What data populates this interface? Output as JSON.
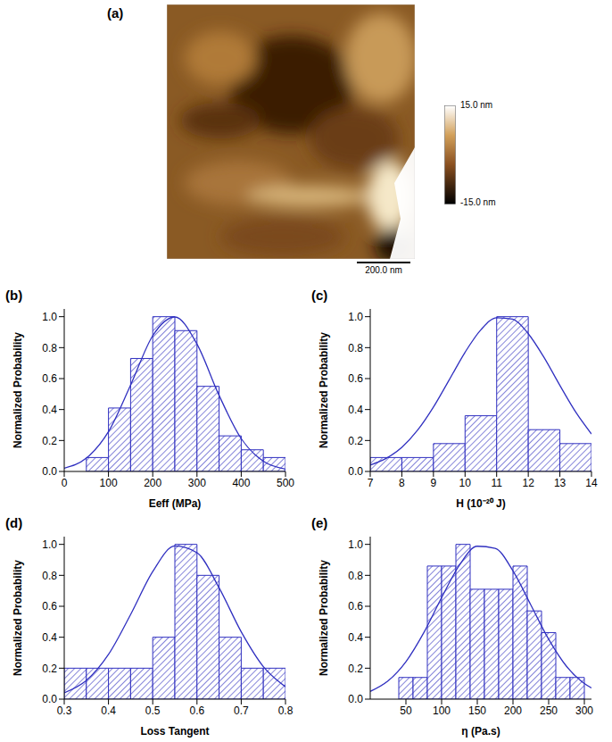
{
  "image": {
    "panel_label": "(a)",
    "colorbar": {
      "max_label": "15.0 nm",
      "min_label": "-15.0 nm"
    },
    "scale_bar": "200.0 nm"
  },
  "chart_data": [
    {
      "type": "histogram",
      "panel_label": "(b)",
      "xlabel": "Eeff (MPa)",
      "ylabel": "Normalized Probability",
      "color": "#3030c0",
      "grid": false,
      "bins": [
        50,
        100,
        150,
        200,
        250,
        300,
        350,
        400,
        450,
        500
      ],
      "values": [
        0.09,
        0.41,
        0.73,
        1.0,
        0.91,
        0.55,
        0.23,
        0.14,
        0.09
      ],
      "xlim": [
        0,
        500
      ],
      "xticks": [
        0,
        100,
        200,
        300,
        400,
        500
      ],
      "ylim": [
        0,
        1.05
      ],
      "yticks": [
        {
          "value": 0,
          "label": "0.0"
        },
        0.2,
        0.4,
        0.6,
        0.8,
        {
          "value": 1,
          "label": "1.0"
        }
      ],
      "fit": {
        "type": "line",
        "x": [
          0,
          50,
          100,
          150,
          200,
          250,
          300,
          350,
          400,
          450,
          500
        ],
        "values": [
          0.021,
          0.086,
          0.257,
          0.558,
          0.877,
          0.998,
          0.823,
          0.491,
          0.212,
          0.066,
          0.015
        ]
      }
    },
    {
      "type": "histogram",
      "panel_label": "(c)",
      "xlabel": "H (10⁻²⁰ J)",
      "ylabel": "Normalized Probability",
      "color": "#3030c0",
      "grid": false,
      "bins": [
        7,
        8,
        9,
        10,
        11,
        12,
        13,
        14
      ],
      "values": [
        0.09,
        0.09,
        0.18,
        0.36,
        1.0,
        0.27,
        0.18
      ],
      "xlim": [
        7,
        14
      ],
      "xticks": [
        7,
        8,
        9,
        10,
        11,
        12,
        13,
        14
      ],
      "ylim": [
        0,
        1.05
      ],
      "yticks": [
        {
          "value": 0,
          "label": "0.0"
        },
        0.2,
        0.4,
        0.6,
        0.8,
        {
          "value": 1,
          "label": "1.0"
        }
      ],
      "fit": {
        "type": "line",
        "x": [
          7,
          7.5,
          8,
          8.5,
          9,
          9.5,
          10,
          10.5,
          11,
          11.5,
          12,
          12.5,
          13,
          13.5,
          14
        ],
        "values": [
          0.041,
          0.084,
          0.156,
          0.267,
          0.416,
          0.592,
          0.77,
          0.915,
          0.993,
          0.984,
          0.89,
          0.736,
          0.556,
          0.384,
          0.242
        ]
      }
    },
    {
      "type": "histogram",
      "panel_label": "(d)",
      "xlabel": "Loss Tangent",
      "ylabel": "Normalized Probability",
      "color": "#3030c0",
      "grid": false,
      "bins": [
        0.3,
        0.35,
        0.4,
        0.45,
        0.5,
        0.55,
        0.6,
        0.65,
        0.7,
        0.75,
        0.8
      ],
      "values": [
        0.2,
        0.2,
        0.2,
        0.2,
        0.4,
        1.0,
        0.8,
        0.4,
        0.2,
        0.2
      ],
      "xlim": [
        0.3,
        0.8
      ],
      "xticks": [
        0.3,
        0.4,
        0.5,
        0.6,
        0.7,
        0.8
      ],
      "ylim": [
        0,
        1.05
      ],
      "yticks": [
        {
          "value": 0,
          "label": "0.0"
        },
        0.2,
        0.4,
        0.6,
        0.8,
        {
          "value": 1,
          "label": "1.0"
        }
      ],
      "fit": {
        "type": "line",
        "x": [
          0.3,
          0.35,
          0.4,
          0.45,
          0.5,
          0.55,
          0.6,
          0.65,
          0.7,
          0.75,
          0.8
        ],
        "values": [
          0.041,
          0.121,
          0.289,
          0.547,
          0.824,
          0.99,
          0.946,
          0.719,
          0.435,
          0.21,
          0.08
        ]
      }
    },
    {
      "type": "histogram",
      "panel_label": "(e)",
      "xlabel": "η (Pa.s)",
      "ylabel": "Normalized Probability",
      "color": "#3030c0",
      "grid": false,
      "bins": [
        40,
        60,
        80,
        100,
        120,
        140,
        160,
        180,
        200,
        220,
        240,
        260,
        280,
        300
      ],
      "values": [
        0.14,
        0.14,
        0.86,
        0.86,
        1.0,
        0.71,
        0.71,
        0.71,
        0.86,
        0.57,
        0.43,
        0.14,
        0.14
      ],
      "xlim": [
        0,
        310
      ],
      "xticks": [
        50,
        100,
        150,
        200,
        250,
        300
      ],
      "ylim": [
        0,
        1.05
      ],
      "yticks": [
        {
          "value": 0,
          "label": "0.0"
        },
        0.2,
        0.4,
        0.6,
        0.8,
        {
          "value": 1,
          "label": "1.0"
        }
      ],
      "fit": {
        "type": "line",
        "x": [
          0,
          25,
          50,
          75,
          100,
          125,
          150,
          175,
          200,
          225,
          250,
          275,
          300,
          310
        ],
        "values": [
          0.05,
          0.118,
          0.242,
          0.429,
          0.656,
          0.866,
          0.988,
          0.974,
          0.829,
          0.609,
          0.387,
          0.212,
          0.101,
          0.072
        ]
      }
    }
  ]
}
